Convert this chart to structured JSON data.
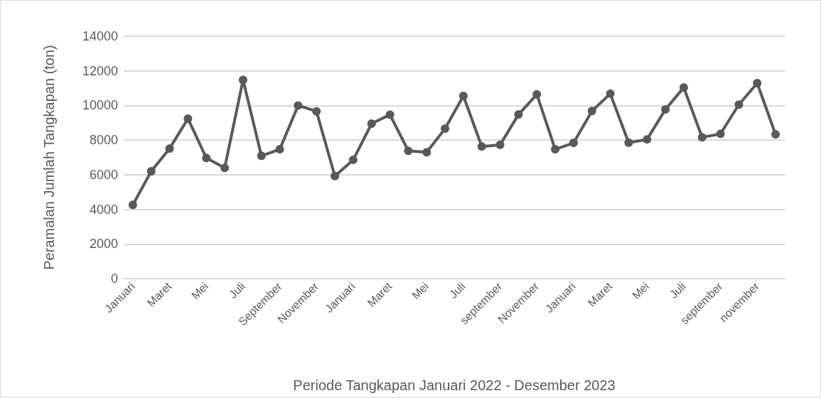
{
  "chart_data": {
    "type": "line",
    "xlabel": "Periode Tangkapan Januari 2022 - Desember 2023",
    "ylabel": "Peramalan Jumlah Tangkapan (ton)",
    "categories": [
      "Januari",
      null,
      "Maret",
      null,
      "Mei",
      null,
      "Juli",
      null,
      "September",
      null,
      "November",
      null,
      "Januari",
      null,
      "Maret",
      null,
      "Mei",
      null,
      "Juli",
      null,
      "september",
      null,
      "November",
      null,
      "Januari",
      null,
      "Maret",
      null,
      "Mei",
      null,
      "Juli",
      null,
      "september",
      null,
      "november",
      null
    ],
    "series": [
      {
        "color": "#595959",
        "values": [
          4260,
          6200,
          7510,
          9240,
          6970,
          6390,
          11480,
          7090,
          7470,
          10000,
          9660,
          5920,
          6860,
          8950,
          9470,
          7380,
          7300,
          8660,
          10550,
          7630,
          7730,
          9480,
          10640,
          7470,
          7840,
          9680,
          10680,
          7850,
          8040,
          9770,
          11040,
          8160,
          8360,
          10050,
          11290,
          8330
        ]
      }
    ],
    "ylim": [
      0,
      14000
    ],
    "yticks": [
      0,
      2000,
      4000,
      6000,
      8000,
      10000,
      12000,
      14000
    ],
    "grid": "y",
    "legend": false,
    "marker": "circle",
    "line_style": "solid"
  }
}
